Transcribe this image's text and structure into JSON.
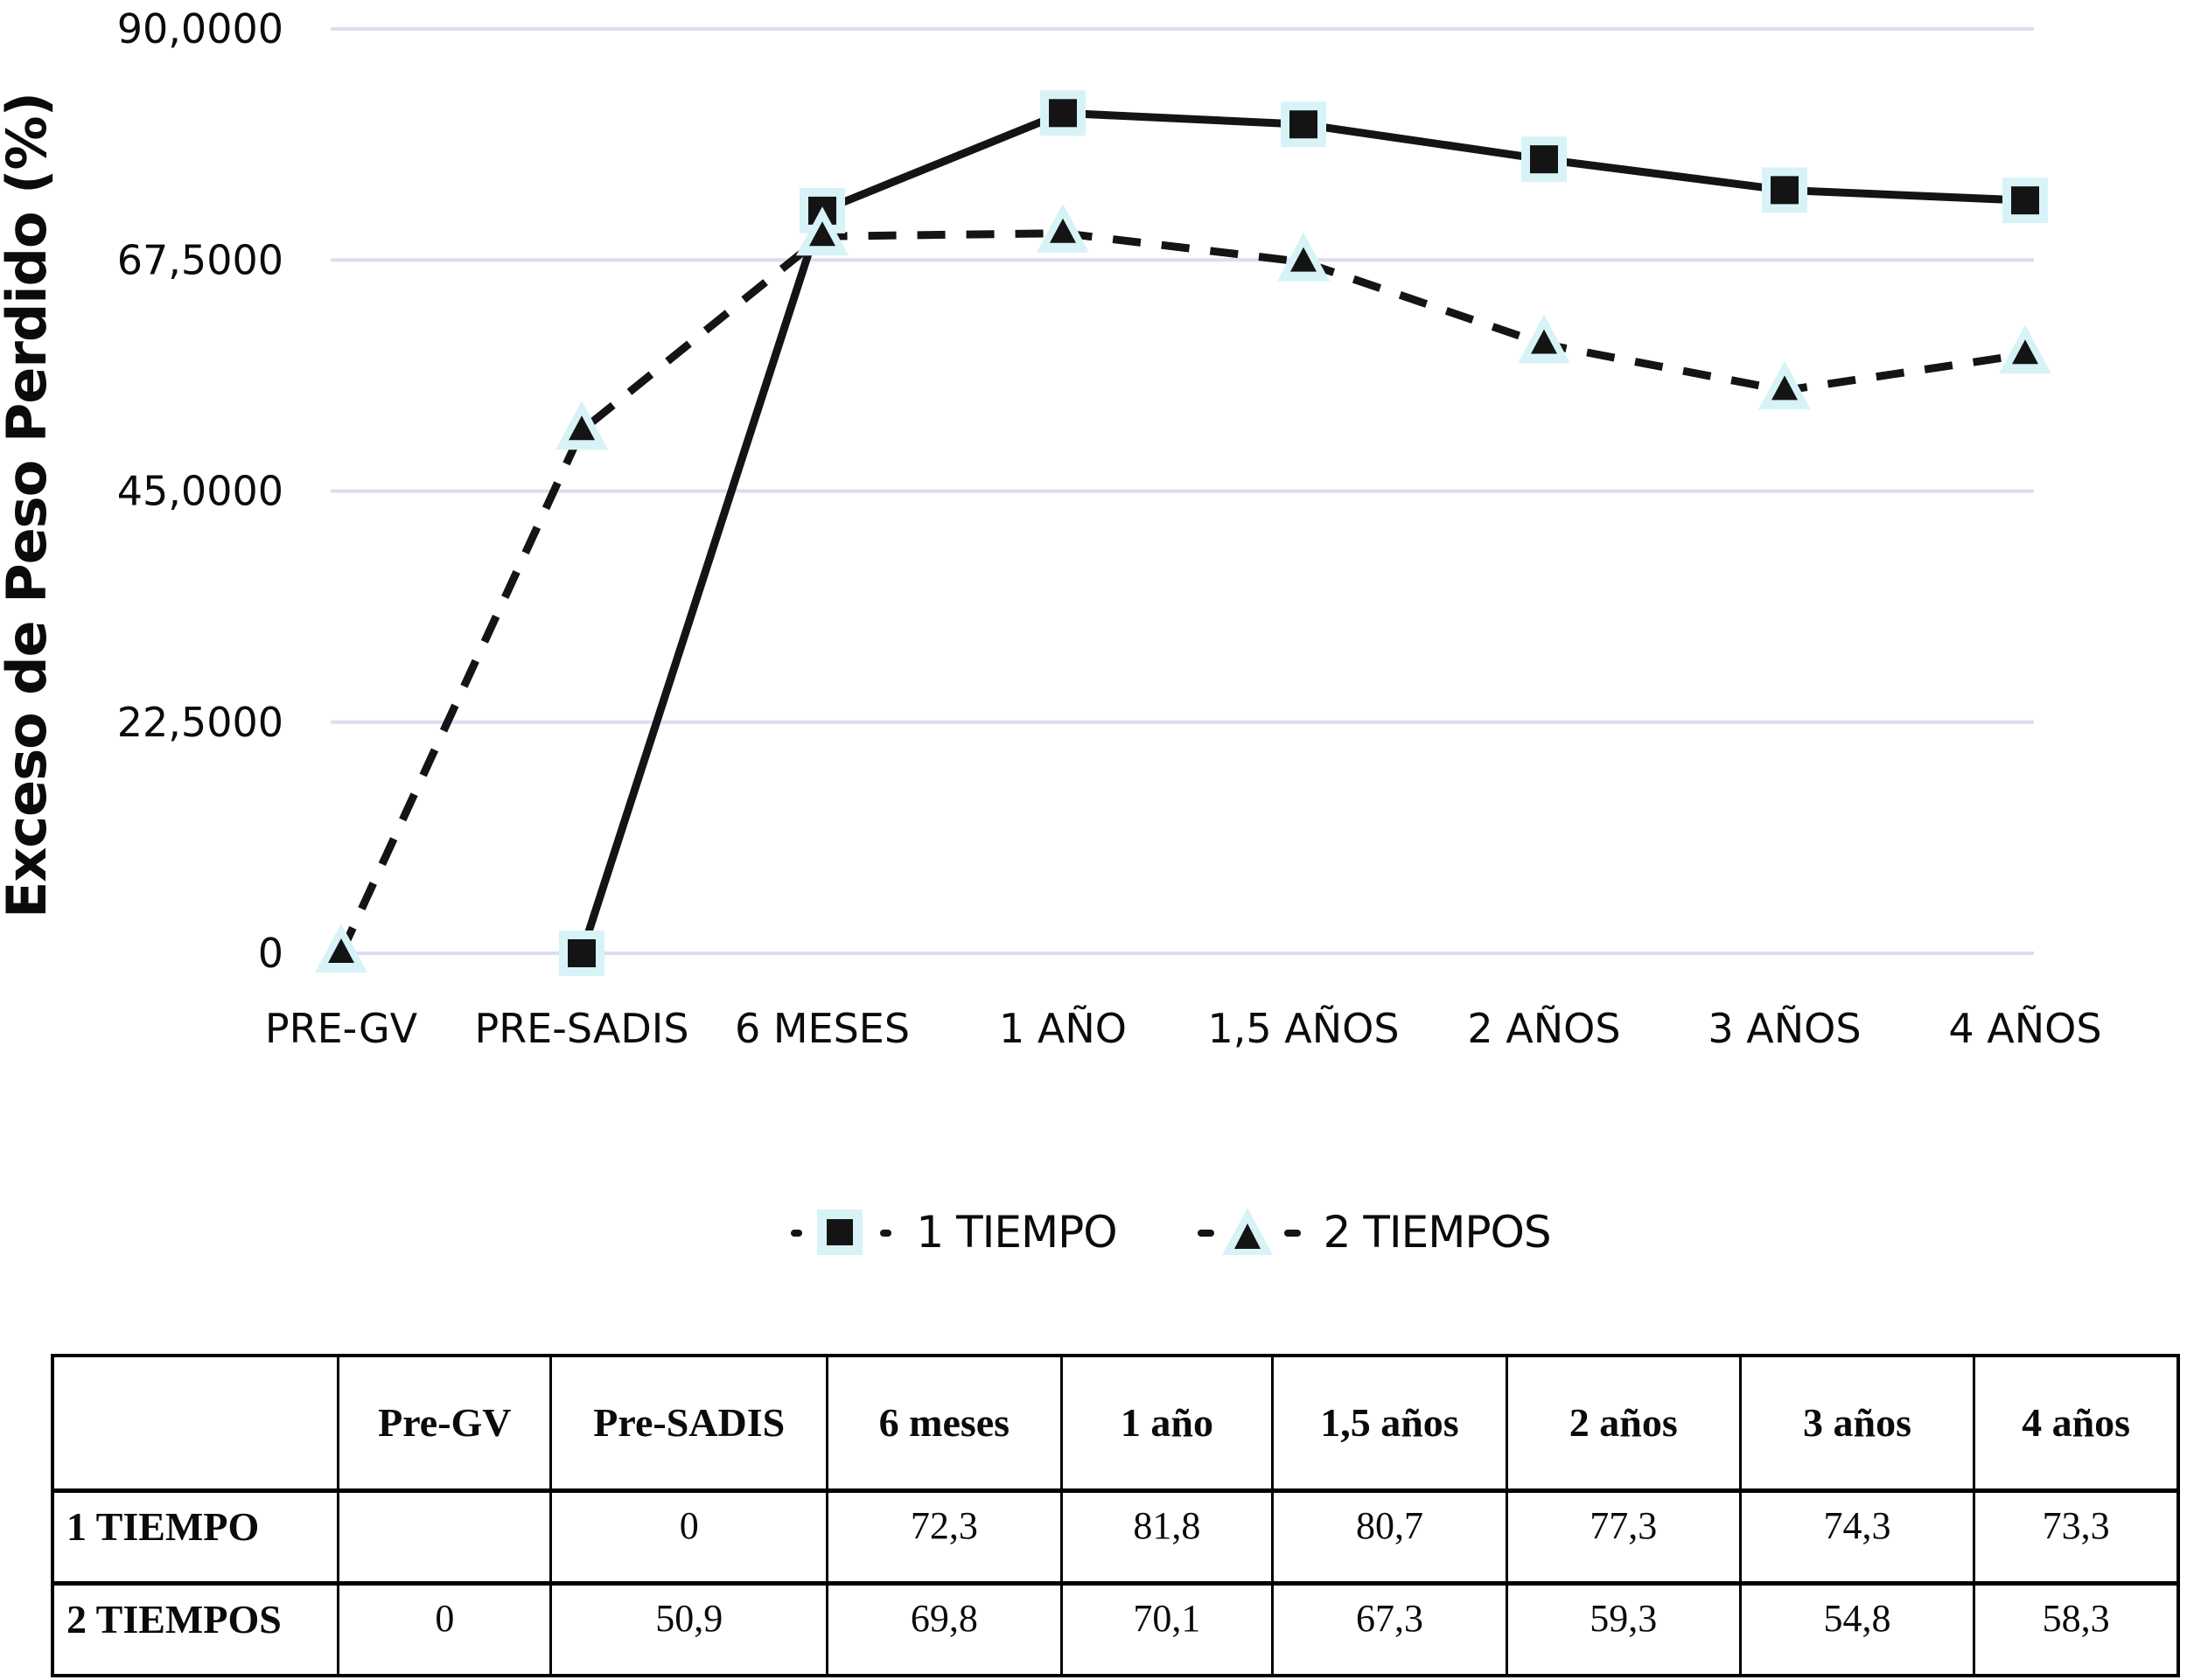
{
  "chart_data": {
    "type": "line",
    "title": "",
    "ylabel": "Exceso de Peso Perdido (%)",
    "xlabel": "",
    "ylim": [
      0,
      90
    ],
    "grid": true,
    "legend_position": "bottom",
    "yticks": [
      {
        "value": 0,
        "label": "0"
      },
      {
        "value": 22.5,
        "label": "22,5000"
      },
      {
        "value": 45,
        "label": "45,0000"
      },
      {
        "value": 67.5,
        "label": "67,5000"
      },
      {
        "value": 90,
        "label": "90,0000"
      }
    ],
    "categories": [
      "PRE-GV",
      "PRE-SADIS",
      "6 MESES",
      "1 AÑO",
      "1,5 AÑOS",
      "2 AÑOS",
      "3 AÑOS",
      "4 AÑOS"
    ],
    "series": [
      {
        "name": "1 TIEMPO",
        "marker": "square",
        "line": "solid",
        "values": [
          null,
          0,
          72.3,
          81.8,
          80.7,
          77.3,
          74.3,
          73.3
        ]
      },
      {
        "name": "2 TIEMPOS",
        "marker": "triangle",
        "line": "dashed",
        "values": [
          0,
          50.9,
          69.8,
          70.1,
          67.3,
          59.3,
          54.8,
          58.3
        ]
      }
    ],
    "colors": {
      "ink": "#141414",
      "grid": "#dcdcf2",
      "marker_halo": "#d7f3f7"
    }
  },
  "table": {
    "col_headers": [
      "",
      "Pre-GV",
      "Pre-SADIS",
      "6 meses",
      "1 año",
      "1,5 años",
      "2 años",
      "3 años",
      "4 años"
    ],
    "rows": [
      {
        "label": "1 TIEMPO",
        "values": [
          "",
          "0",
          "72,3",
          "81,8",
          "80,7",
          "77,3",
          "74,3",
          "73,3"
        ]
      },
      {
        "label": "2 TIEMPOS",
        "values": [
          "0",
          "50,9",
          "69,8",
          "70,1",
          "67,3",
          "59,3",
          "54,8",
          "58,3"
        ]
      }
    ]
  }
}
